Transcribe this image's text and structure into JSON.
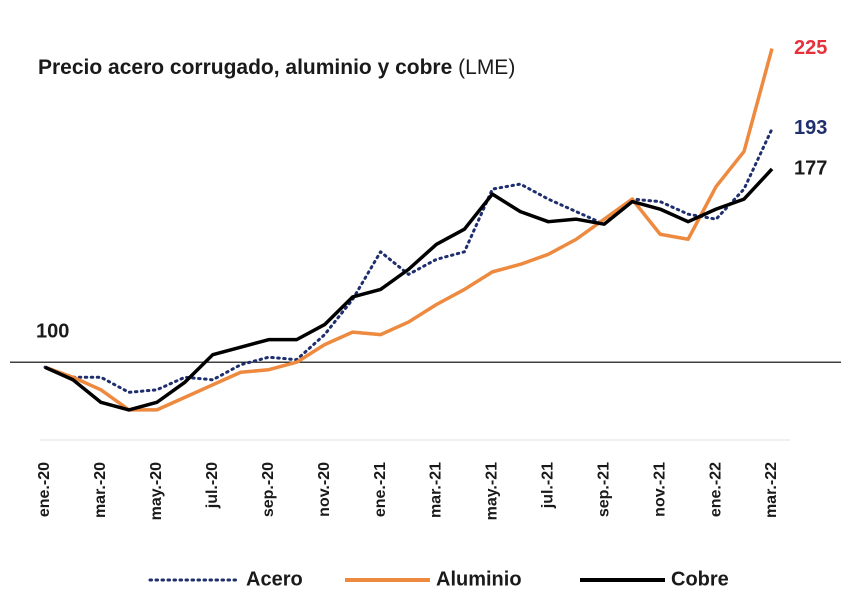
{
  "chart_data": {
    "type": "line",
    "title": "Precio acero corrugado, aluminio y cobre",
    "subtitle": "(LME)",
    "categories": [
      "ene.-20",
      null,
      "mar.-20",
      null,
      "may.-20",
      null,
      "jul.-20",
      null,
      "sep.-20",
      null,
      "nov.-20",
      null,
      "ene.-21",
      null,
      "mar.-21",
      null,
      "may.-21",
      null,
      "jul.-21",
      null,
      "sep.-21",
      null,
      "nov.-21",
      null,
      "ene.-22",
      null,
      "mar.-22"
    ],
    "series": [
      {
        "name": "Acero",
        "color": "#1f2f6e",
        "label_color": "#1f2f6e",
        "dashed": true,
        "values": [
          98,
          94,
          94,
          88,
          89,
          94,
          93,
          99,
          102,
          101,
          111,
          125,
          144,
          135,
          141,
          144,
          169,
          171,
          165,
          160,
          155,
          165,
          164,
          159,
          157,
          169,
          193
        ]
      },
      {
        "name": "Aluminio",
        "color": "#ed8a3f",
        "label_color": "#e8303a",
        "dashed": false,
        "values": [
          98,
          94,
          89,
          81,
          81,
          86,
          91,
          96,
          97,
          100,
          107,
          112,
          111,
          116,
          123,
          129,
          136,
          139,
          143,
          149,
          157,
          165,
          151,
          149,
          170,
          184,
          225
        ]
      },
      {
        "name": "Cobre",
        "color": "#000000",
        "label_color": "#1a1a1a",
        "dashed": false,
        "values": [
          98,
          93,
          84,
          81,
          84,
          92,
          103,
          106,
          109,
          109,
          115,
          126,
          129,
          137,
          147,
          153,
          167,
          160,
          156,
          157,
          155,
          164,
          161,
          156,
          161,
          165,
          177
        ]
      }
    ],
    "reference_line": {
      "value": 100
    },
    "ylim": [
      69,
      230
    ]
  }
}
